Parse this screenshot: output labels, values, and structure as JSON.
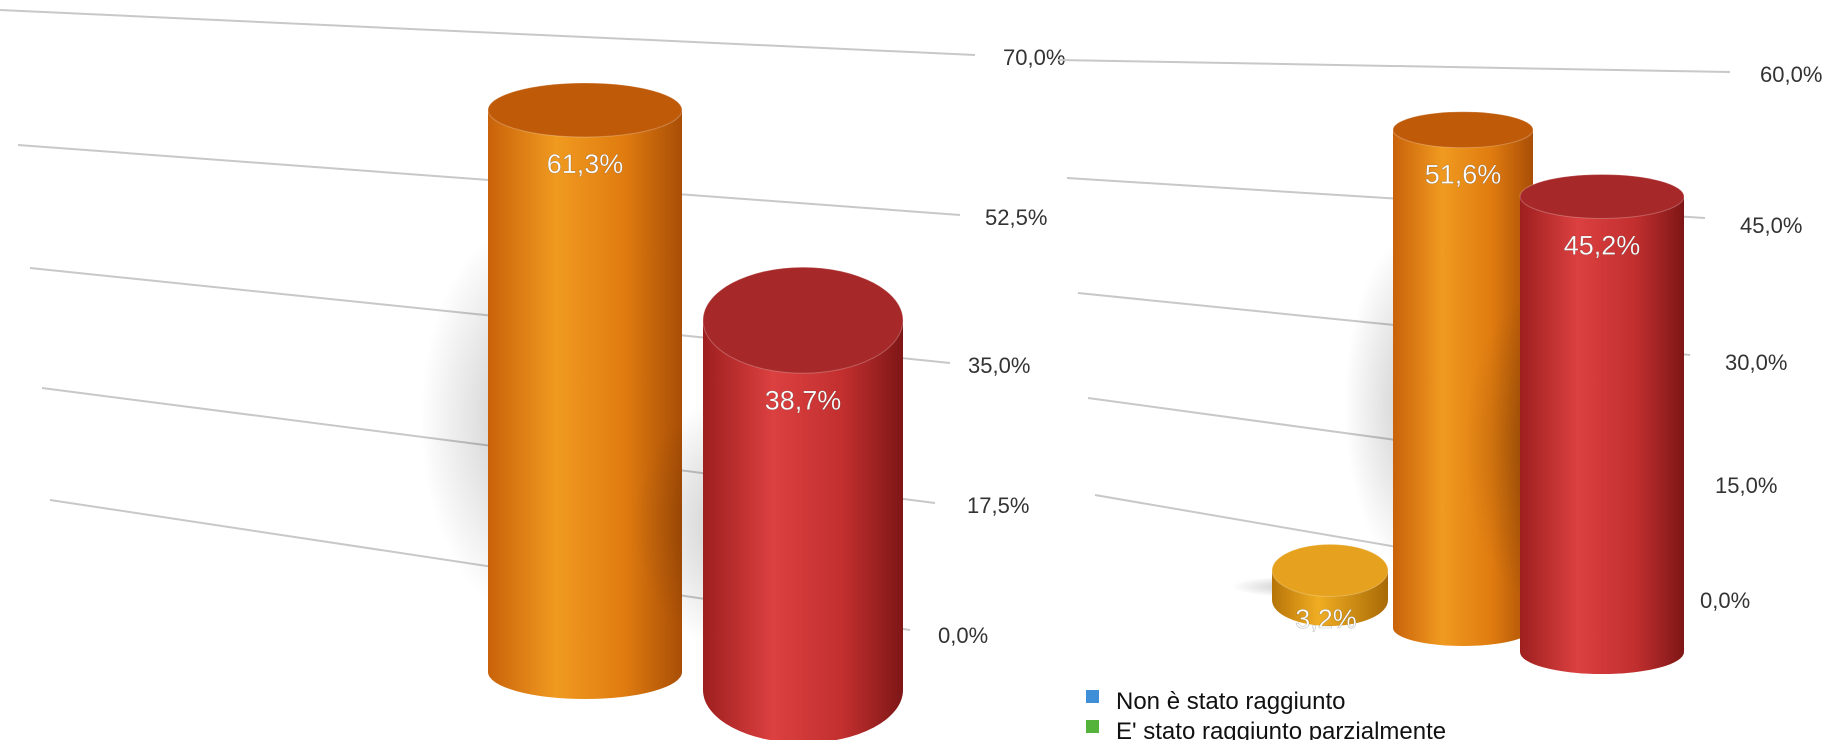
{
  "chart_data": [
    {
      "type": "bar",
      "style": "3d-cylinder",
      "ylim": [
        0,
        70
      ],
      "ticks": [
        "0,0%",
        "17,5%",
        "35,0%",
        "52,5%",
        "70,0%"
      ],
      "series": [
        {
          "values": [
            61.3
          ],
          "label": "61,3%",
          "color": "#e8820c"
        },
        {
          "values": [
            38.7
          ],
          "label": "38,7%",
          "color": "#c93131"
        }
      ]
    },
    {
      "type": "bar",
      "style": "3d-cylinder",
      "ylim": [
        0,
        60
      ],
      "ticks": [
        "0,0%",
        "15,0%",
        "30,0%",
        "45,0%",
        "60,0%"
      ],
      "series": [
        {
          "values": [
            3.2
          ],
          "label": "3,2%",
          "color": "#e09812"
        },
        {
          "values": [
            51.6
          ],
          "label": "51,6%",
          "color": "#e8820c"
        },
        {
          "values": [
            45.2
          ],
          "label": "45,2%",
          "color": "#c93131"
        }
      ]
    }
  ],
  "legend": [
    {
      "label": "Non è stato raggiunto",
      "color": "#3f8fd8"
    },
    {
      "label": "E' stato raggiunto parzialmente",
      "color": "#55b33b"
    }
  ]
}
